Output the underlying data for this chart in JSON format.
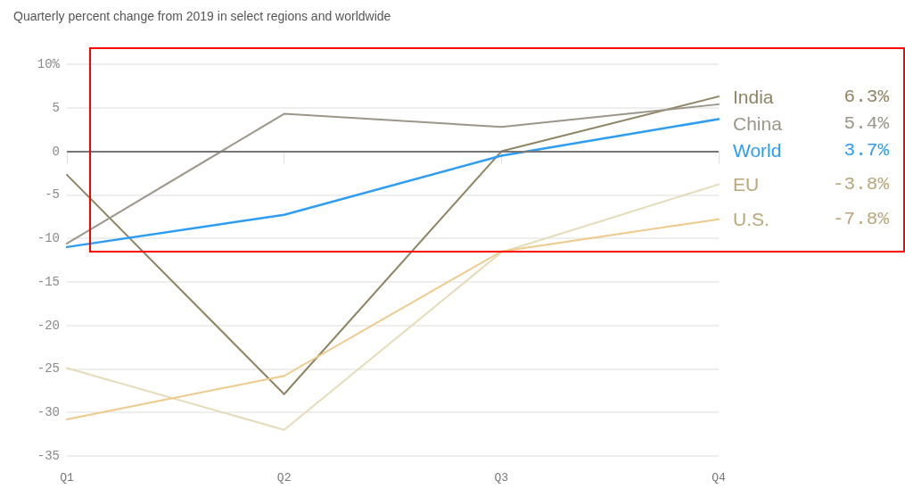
{
  "chart_data": {
    "type": "line",
    "title": "Quarterly percent change from 2019 in select regions and worldwide",
    "categories": [
      "Q1",
      "Q2",
      "Q3",
      "Q4"
    ],
    "series": [
      {
        "name": "India",
        "color": "#8f8462",
        "values": [
          -2.7,
          -27.9,
          0.0,
          6.3
        ]
      },
      {
        "name": "China",
        "color": "#9c968a",
        "values": [
          -10.6,
          4.3,
          2.8,
          5.4
        ]
      },
      {
        "name": "World",
        "color": "#2d9cf5",
        "values": [
          -11.0,
          -7.3,
          -0.5,
          3.7
        ]
      },
      {
        "name": "EU",
        "color": "#e5dbb8",
        "values": [
          -24.9,
          -32.0,
          -11.6,
          -3.8
        ]
      },
      {
        "name": "U.S.",
        "color": "#efc98a",
        "values": [
          -30.8,
          -25.8,
          -11.5,
          -7.8
        ]
      }
    ],
    "annotations": [
      "6.3%",
      "5.4%",
      "3.7%",
      "-3.8%",
      "-7.8%"
    ],
    "ylim": [
      -35,
      10
    ],
    "yticks": [
      -35,
      -30,
      -25,
      -20,
      -15,
      -10,
      -5,
      0,
      5,
      {
        "value": 10,
        "label": "10%"
      }
    ],
    "ref_lines": [
      {
        "axis": "y",
        "value": 0,
        "color": "#777777"
      }
    ],
    "grid": "y",
    "legend": false,
    "marker": "none",
    "line_style": "solid"
  }
}
